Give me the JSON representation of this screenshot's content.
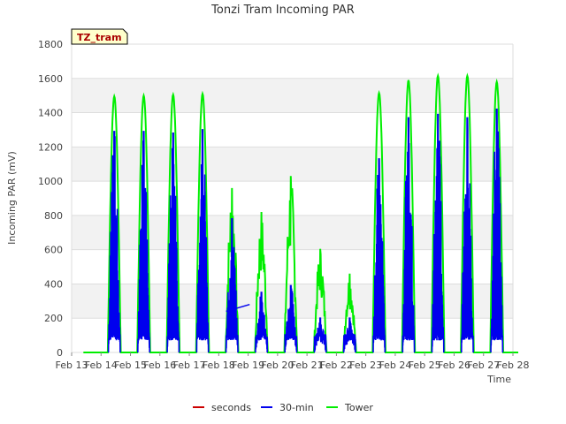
{
  "chart_data": {
    "type": "line",
    "title": "Tonzi Tram Incoming PAR",
    "site_label": "TZ_tram",
    "xlabel": "Time",
    "ylabel": "Incoming PAR (mV)",
    "ylim": [
      0,
      1800
    ],
    "yticks": [
      0,
      200,
      400,
      600,
      800,
      1000,
      1200,
      1400,
      1600,
      1800
    ],
    "xlim": [
      13,
      28
    ],
    "xticks": [
      13,
      14,
      15,
      16,
      17,
      18,
      19,
      20,
      21,
      22,
      23,
      24,
      25,
      26,
      27,
      28
    ],
    "xtick_labels": [
      "Feb 13",
      "Feb 14",
      "Feb 15",
      "Feb 16",
      "Feb 17",
      "Feb 18",
      "Feb 19",
      "Feb 20",
      "Feb 21",
      "Feb 22",
      "Feb 23",
      "Feb 24",
      "Feb 25",
      "Feb 26",
      "Feb 27",
      "Feb 28"
    ],
    "grid": true,
    "band_stripes": true,
    "legend_position": "bottom-center",
    "series": [
      {
        "name": "seconds",
        "color": "#cc0000",
        "daily_peaks": []
      },
      {
        "name": "30-min",
        "color": "#0000ee",
        "daily_peaks": [
          1290,
          1290,
          1280,
          1300,
          780,
          350,
          390,
          200,
          200,
          1130,
          1370,
          1390,
          1370,
          1420
        ],
        "gap_segment": {
          "x": [
            18.25,
            19.05
          ],
          "y": [
            240,
            280
          ]
        }
      },
      {
        "name": "Tower",
        "color": "#00ee00",
        "daily_peaks": [
          1495,
          1500,
          1505,
          1510,
          960,
          820,
          1030,
          605,
          460,
          1515,
          1590,
          1615,
          1615,
          1580
        ]
      }
    ]
  }
}
